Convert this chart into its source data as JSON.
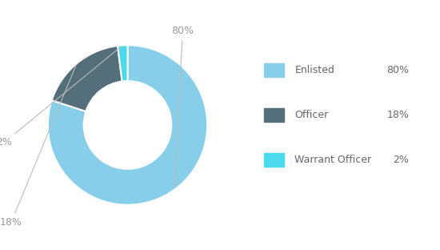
{
  "labels": [
    "Enlisted",
    "Officer",
    "Warrant Officer"
  ],
  "values": [
    80,
    18,
    2
  ],
  "colors": [
    "#87CEEB",
    "#546E7A",
    "#4DD9EC"
  ],
  "legend_labels": [
    "Enlisted",
    "Officer",
    "Warrant Officer"
  ],
  "legend_values": [
    "80%",
    "18%",
    "2%"
  ],
  "background_color": "#ffffff",
  "donut_width": 0.45,
  "label_color": "#999999",
  "legend_text_color": "#666666",
  "font_size": 9,
  "annotation_fontsize": 9,
  "wedge_edge_color": "#ffffff",
  "wedge_linewidth": 1.5
}
